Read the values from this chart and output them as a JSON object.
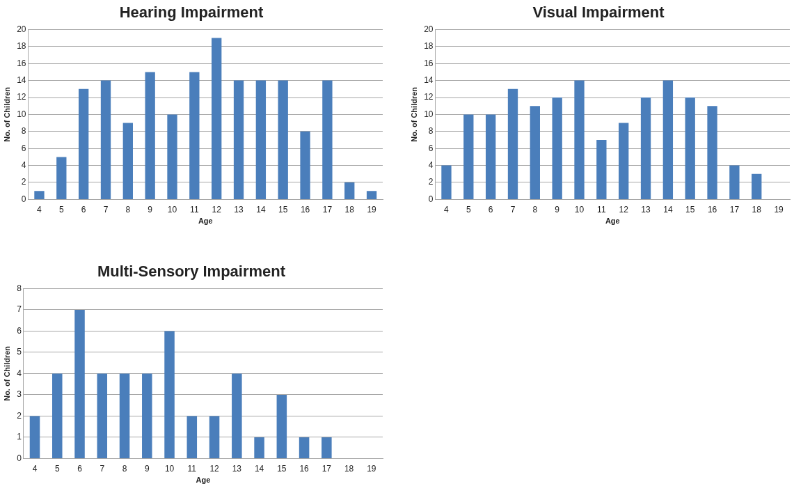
{
  "chart_data": [
    {
      "type": "bar",
      "title": "Hearing Impairment",
      "xlabel": "Age",
      "ylabel": "No. of Children",
      "categories": [
        "4",
        "5",
        "6",
        "7",
        "8",
        "9",
        "10",
        "11",
        "12",
        "13",
        "14",
        "15",
        "16",
        "17",
        "18",
        "19"
      ],
      "values": [
        1,
        5,
        13,
        14,
        9,
        15,
        10,
        15,
        19,
        14,
        14,
        14,
        8,
        14,
        2,
        1
      ],
      "color": "#4a7ebb",
      "ylim": [
        0,
        20
      ],
      "yticks": [
        0,
        2,
        4,
        6,
        8,
        10,
        12,
        14,
        16,
        18,
        20
      ],
      "grid": "y"
    },
    {
      "type": "bar",
      "title": "Visual Impairment",
      "xlabel": "Age",
      "ylabel": "No. of Children",
      "categories": [
        "4",
        "5",
        "6",
        "7",
        "8",
        "9",
        "10",
        "11",
        "12",
        "13",
        "14",
        "15",
        "16",
        "17",
        "18",
        "19"
      ],
      "values": [
        4,
        10,
        10,
        13,
        11,
        12,
        14,
        7,
        9,
        12,
        14,
        12,
        11,
        4,
        3,
        0
      ],
      "color": "#4a7ebb",
      "ylim": [
        0,
        20
      ],
      "yticks": [
        0,
        2,
        4,
        6,
        8,
        10,
        12,
        14,
        16,
        18,
        20
      ],
      "grid": "y"
    },
    {
      "type": "bar",
      "title": "Multi-Sensory Impairment",
      "xlabel": "Age",
      "ylabel": "No. of Children",
      "categories": [
        "4",
        "5",
        "6",
        "7",
        "8",
        "9",
        "10",
        "11",
        "12",
        "13",
        "14",
        "15",
        "16",
        "17",
        "18",
        "19"
      ],
      "values": [
        2,
        4,
        7,
        4,
        4,
        4,
        6,
        2,
        2,
        4,
        1,
        3,
        1,
        1,
        0,
        0
      ],
      "color": "#4a7ebb",
      "ylim": [
        0,
        8
      ],
      "yticks": [
        0,
        1,
        2,
        3,
        4,
        5,
        6,
        7,
        8
      ],
      "grid": "y"
    }
  ]
}
